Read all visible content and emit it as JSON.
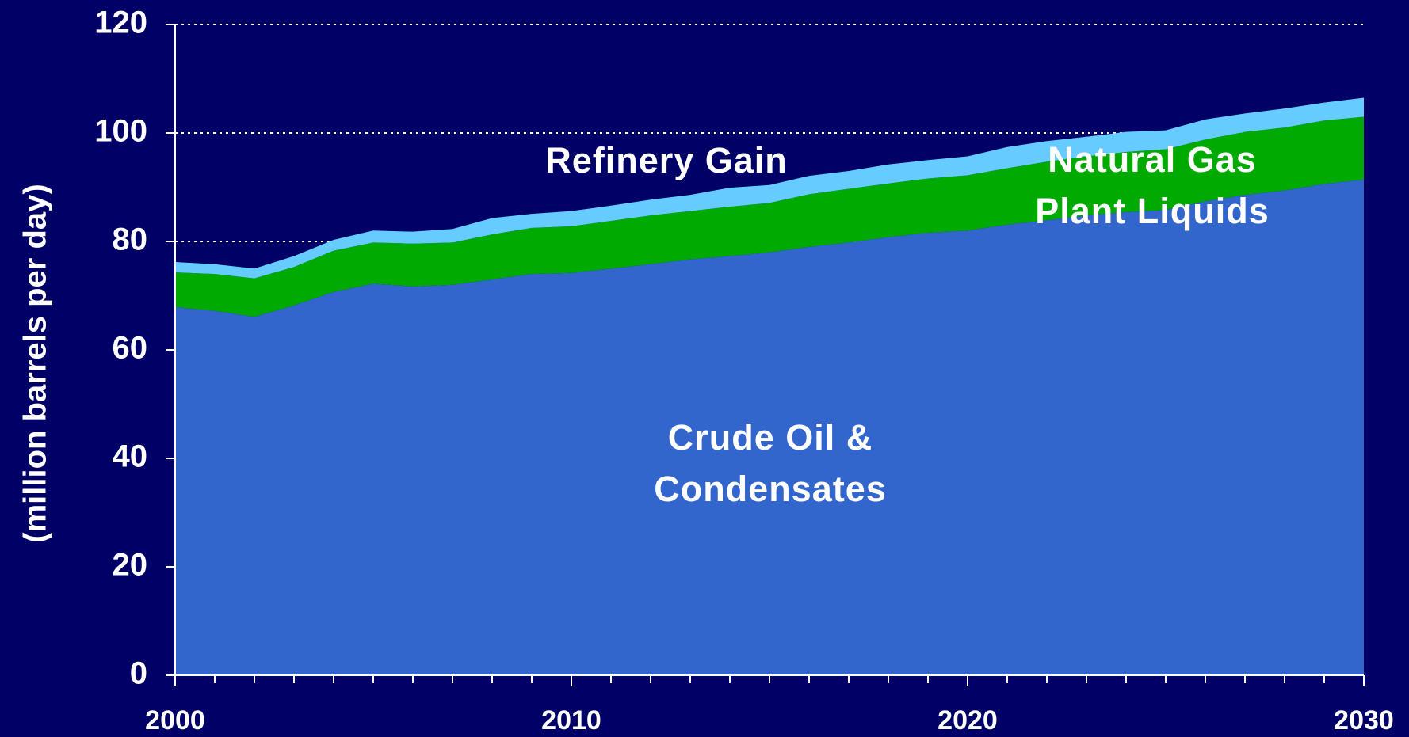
{
  "chart_data": {
    "type": "stacked_area",
    "y_label": "(million barrels per day)",
    "x": [
      2000,
      2001,
      2002,
      2003,
      2004,
      2005,
      2006,
      2007,
      2008,
      2009,
      2010,
      2011,
      2012,
      2013,
      2014,
      2015,
      2016,
      2017,
      2018,
      2019,
      2020,
      2021,
      2022,
      2023,
      2024,
      2025,
      2026,
      2027,
      2028,
      2029,
      2030
    ],
    "series": [
      {
        "name": "Crude Oil & Condensates",
        "color": "#3366cc",
        "values": [
          67.9,
          67.2,
          66.1,
          68.2,
          70.7,
          72.2,
          71.7,
          72.0,
          73.0,
          74.0,
          74.2,
          75.0,
          75.8,
          76.7,
          77.3,
          78.0,
          79.0,
          79.8,
          80.8,
          81.6,
          82.0,
          83.1,
          83.9,
          84.8,
          85.4,
          85.8,
          87.4,
          88.6,
          89.4,
          90.6,
          91.4
        ]
      },
      {
        "name": "Natural Gas Plant Liquids",
        "color": "#00aa00",
        "values": [
          6.4,
          6.8,
          7.1,
          7.1,
          7.6,
          7.6,
          7.9,
          7.8,
          8.3,
          8.5,
          8.6,
          8.8,
          9.0,
          8.9,
          9.1,
          9.1,
          9.7,
          9.9,
          9.9,
          10.0,
          10.2,
          10.4,
          10.8,
          10.9,
          11.1,
          11.2,
          11.4,
          11.6,
          11.6,
          11.7,
          11.6
        ]
      },
      {
        "name": "Refinery Gain",
        "color": "#66ccff",
        "values": [
          1.9,
          1.8,
          1.8,
          2.0,
          2.0,
          2.2,
          2.2,
          2.5,
          3.0,
          2.6,
          2.8,
          2.8,
          2.9,
          3.0,
          3.5,
          3.3,
          3.4,
          3.3,
          3.5,
          3.4,
          3.5,
          3.9,
          3.8,
          3.6,
          3.7,
          3.5,
          3.7,
          3.4,
          3.5,
          3.3,
          3.5
        ]
      }
    ],
    "xlim": [
      2000,
      2030
    ],
    "xticks": [
      2000,
      2010,
      2020,
      2030
    ],
    "ylim": [
      0,
      120
    ],
    "yticks": [
      0,
      20,
      40,
      60,
      80,
      100,
      120
    ],
    "grid": true
  }
}
